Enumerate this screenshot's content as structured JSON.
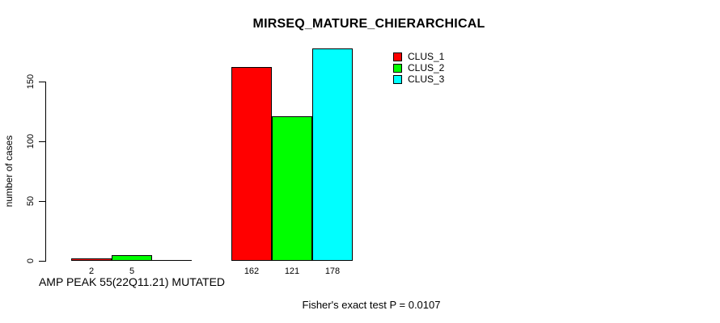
{
  "title": "MIRSEQ_MATURE_CHIERARCHICAL",
  "footer": {
    "text": "Fisher's exact test P = 0.0107"
  },
  "chart_data": {
    "type": "bar",
    "title": "MIRSEQ_MATURE_CHIERARCHICAL",
    "xlabel": "AMP PEAK 55(22Q11.21) MUTATED",
    "ylabel": "number of cases",
    "ylim": [
      0,
      150
    ],
    "yticks": [
      0,
      50,
      100,
      150
    ],
    "grid": false,
    "legend_position": "top-right",
    "categories": [
      "AMP PEAK 55(22Q11.21) MUTATED",
      ""
    ],
    "series": [
      {
        "name": "CLUS_1",
        "color": "#ff0000",
        "values": [
          2,
          162
        ]
      },
      {
        "name": "CLUS_2",
        "color": "#00ff00",
        "values": [
          5,
          121
        ]
      },
      {
        "name": "CLUS_3",
        "color": "#00ffff",
        "values": [
          0,
          178
        ]
      }
    ],
    "bar_value_labels": [
      [
        "2",
        "5",
        ""
      ],
      [
        "162",
        "121",
        "178"
      ]
    ],
    "annotation": "Fisher's exact test P = 0.0107"
  }
}
